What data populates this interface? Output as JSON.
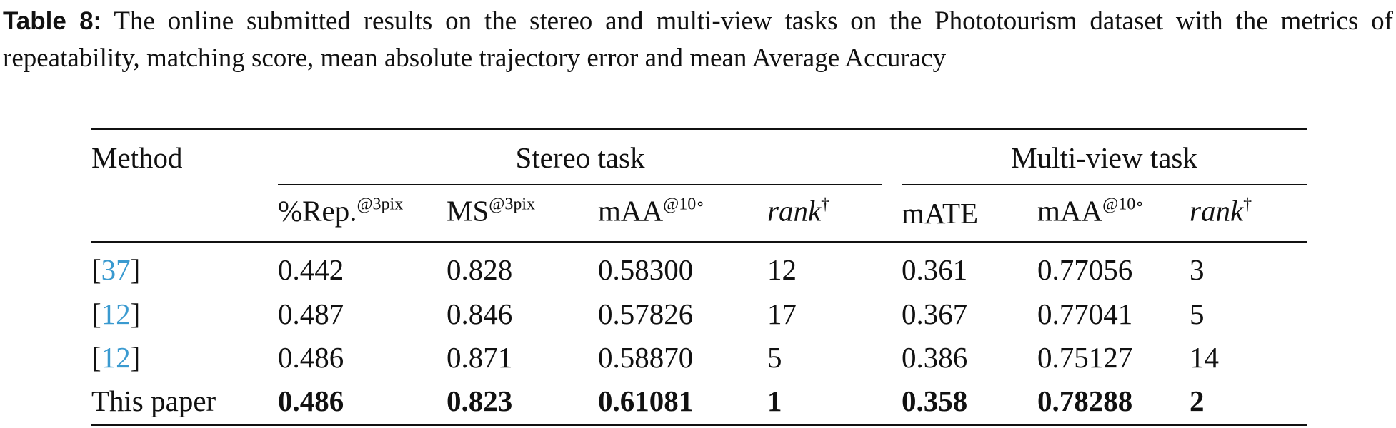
{
  "caption": {
    "label": "Table 8:",
    "text": "The online submitted results on the stereo and multi-view tasks on the Phototourism dataset with the metrics of repeatability, matching score, mean absolute trajectory error and mean Average Accuracy"
  },
  "table": {
    "method_header": "Method",
    "groups": [
      "Stereo task",
      "Multi-view task"
    ],
    "columns": [
      {
        "text": "%Rep.",
        "sup": "@3pix"
      },
      {
        "text": "MS",
        "sup": "@3pix"
      },
      {
        "text": "mAA",
        "sup": "@10∘"
      },
      {
        "text": "rank",
        "sup": "†"
      },
      {
        "text": "mATE"
      },
      {
        "text": "mAA",
        "sup": "@10∘"
      },
      {
        "text": "rank",
        "sup": "†"
      }
    ],
    "rows": [
      {
        "method": [
          "[",
          "37",
          "]"
        ],
        "cells": [
          "0.442",
          "0.828",
          "0.58300",
          "12",
          "0.361",
          "0.77056",
          "3"
        ]
      },
      {
        "method": [
          "[",
          "12",
          "]"
        ],
        "cells": [
          "0.487",
          "0.846",
          "0.57826",
          "17",
          "0.367",
          "0.77041",
          "5"
        ]
      },
      {
        "method": [
          "[",
          "12",
          "]"
        ],
        "cells": [
          "0.486",
          "0.871",
          "0.58870",
          "5",
          "0.386",
          "0.75127",
          "14"
        ]
      },
      {
        "method": [
          "This paper"
        ],
        "cells": [
          "0.486",
          "0.823",
          "0.61081",
          "1",
          "0.358",
          "0.78288",
          "2"
        ],
        "bold": true
      }
    ]
  }
}
